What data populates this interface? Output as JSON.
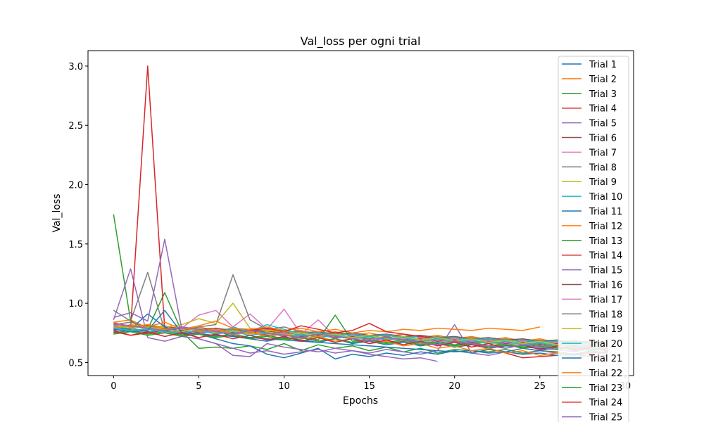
{
  "chart_data": {
    "type": "line",
    "title": "Val_loss per ogni trial",
    "xlabel": "Epochs",
    "ylabel": "Val_loss",
    "xlim": [
      -1.5,
      30.5
    ],
    "ylim": [
      0.39,
      3.13
    ],
    "xticks": [
      0,
      5,
      10,
      15,
      20,
      25,
      30
    ],
    "xtick_labels": [
      "0",
      "5",
      "10",
      "15",
      "20",
      "25",
      "30"
    ],
    "yticks": [
      0.5,
      1.0,
      1.5,
      2.0,
      2.5,
      3.0
    ],
    "ytick_labels": [
      "0.5",
      "1.0",
      "1.5",
      "2.0",
      "2.5",
      "3.0"
    ],
    "grid": false,
    "legend": "right",
    "series": [
      {
        "name": "Trial 1",
        "color": "#1f77b4",
        "values": [
          0.8,
          0.78,
          0.82,
          0.79,
          0.76,
          0.74,
          0.77,
          0.72,
          0.7,
          0.68,
          0.71,
          0.69,
          0.67,
          0.7,
          0.66,
          0.68,
          0.65,
          0.67,
          0.64,
          0.66,
          0.63,
          0.65,
          0.62,
          0.64,
          0.63,
          0.62,
          0.61,
          0.63,
          0.62,
          0.61
        ]
      },
      {
        "name": "Trial 2",
        "color": "#ff7f0e",
        "values": [
          0.84,
          0.86,
          0.79,
          0.81,
          0.78,
          0.8,
          0.77,
          0.79,
          0.76,
          0.78,
          0.75,
          0.77,
          0.74,
          0.76,
          0.73,
          0.75,
          0.72,
          0.74,
          0.71,
          0.73,
          0.7,
          0.72,
          0.69,
          0.71,
          0.68,
          0.7,
          0.67,
          0.69,
          0.66,
          0.68
        ]
      },
      {
        "name": "Trial 3",
        "color": "#2ca02c",
        "values": [
          1.75,
          0.85,
          0.78,
          1.09,
          0.76,
          0.62,
          0.63,
          0.62,
          0.64,
          0.61,
          0.66,
          0.6,
          0.65,
          0.62,
          0.64,
          0.6,
          0.63,
          0.59,
          0.62,
          0.58,
          0.61,
          0.6,
          0.59,
          0.61,
          0.58,
          0.6,
          0.59,
          0.57,
          0.6,
          0.58
        ]
      },
      {
        "name": "Trial 4",
        "color": "#d62728",
        "values": [
          0.8,
          0.79,
          3.0,
          0.78,
          0.77,
          0.79,
          0.76,
          0.78,
          0.75,
          0.77,
          0.74,
          0.76,
          0.73,
          0.75,
          0.74,
          0.72,
          0.73,
          0.71,
          0.72,
          0.7,
          0.71,
          0.69,
          0.7,
          0.68,
          0.69,
          0.67,
          0.68,
          0.66,
          0.67,
          0.65
        ]
      },
      {
        "name": "Trial 5",
        "color": "#9467bd",
        "values": [
          0.86,
          1.29,
          0.71,
          0.68,
          0.72,
          0.7,
          0.66,
          0.56,
          0.55,
          0.66,
          0.63,
          0.61,
          0.59,
          0.62,
          0.6,
          0.58,
          0.61,
          0.59,
          0.57,
          0.6,
          0.82,
          0.58,
          0.56,
          0.59,
          0.57,
          0.6,
          0.58,
          0.56,
          0.59,
          0.57
        ]
      },
      {
        "name": "Trial 6",
        "color": "#8c564b",
        "values": [
          0.82,
          0.8,
          0.81,
          0.79,
          0.8,
          0.78,
          0.79,
          0.77,
          0.78,
          0.76,
          0.77,
          0.75,
          0.76,
          0.74,
          0.75,
          0.73,
          0.74,
          0.72,
          0.73,
          0.71,
          0.72,
          0.7,
          0.71,
          0.69,
          0.7,
          0.68,
          0.69,
          0.67,
          0.68,
          0.66
        ]
      },
      {
        "name": "Trial 7",
        "color": "#e377c2",
        "values": [
          0.83,
          0.78,
          0.75,
          0.77,
          0.79,
          0.9,
          0.94,
          0.8,
          0.91,
          0.78,
          0.95,
          0.74,
          0.86,
          0.72,
          0.7,
          0.71,
          0.69,
          0.7,
          0.68,
          0.69,
          0.67,
          0.68,
          0.66,
          0.67,
          0.65,
          0.66,
          0.64,
          0.65,
          0.63,
          0.64
        ]
      },
      {
        "name": "Trial 8",
        "color": "#7f7f7f",
        "values": [
          0.94,
          0.85,
          1.26,
          0.77,
          0.76,
          0.8,
          0.82,
          1.24,
          0.86,
          0.78,
          0.8,
          0.76,
          0.74,
          0.75,
          0.73,
          0.72,
          0.74,
          0.71,
          0.7,
          0.72,
          0.69,
          0.71,
          0.68,
          0.7,
          0.67,
          0.69,
          0.66,
          0.68,
          0.65,
          0.67
        ]
      },
      {
        "name": "Trial 9",
        "color": "#bcbd22",
        "values": [
          0.79,
          0.81,
          0.78,
          0.8,
          0.82,
          0.87,
          0.83,
          1.0,
          0.79,
          0.77,
          0.76,
          0.75,
          0.74,
          0.73,
          0.72,
          0.71,
          0.7,
          0.69,
          0.68,
          0.67,
          0.68,
          0.66,
          0.67,
          0.65,
          0.66,
          0.64,
          0.65,
          0.63,
          0.64,
          0.62
        ]
      },
      {
        "name": "Trial 10",
        "color": "#17becf",
        "values": [
          0.77,
          0.79,
          0.76,
          0.78,
          0.75,
          0.77,
          0.74,
          0.8,
          0.76,
          0.82,
          0.78,
          0.74,
          0.75,
          0.73,
          0.74,
          0.72,
          0.73,
          0.71,
          0.72,
          0.7,
          0.71,
          0.69,
          0.7,
          0.68,
          0.69,
          0.67,
          0.68,
          0.66,
          0.67,
          0.65
        ]
      },
      {
        "name": "Trial 11",
        "color": "#1f77b4",
        "values": [
          0.81,
          0.78,
          0.91,
          0.8,
          0.76,
          0.74,
          0.7,
          0.66,
          0.64,
          0.57,
          0.54,
          0.58,
          0.62,
          0.53,
          0.57,
          0.55,
          0.58,
          0.56,
          0.59,
          0.57,
          0.6,
          0.58,
          0.61,
          0.59,
          0.62,
          0.6,
          0.63,
          0.61,
          0.64,
          0.62
        ]
      },
      {
        "name": "Trial 12",
        "color": "#ff7f0e",
        "values": [
          0.78,
          0.82,
          0.8,
          0.84,
          0.78,
          0.81,
          0.85,
          0.79,
          0.78,
          0.8,
          0.77,
          0.79,
          0.76,
          0.78,
          0.75,
          0.77,
          0.76,
          0.78,
          0.77,
          0.79,
          0.78,
          0.77,
          0.79,
          0.78,
          0.77,
          0.8,
          null,
          null,
          null,
          null
        ]
      },
      {
        "name": "Trial 13",
        "color": "#2ca02c",
        "values": [
          0.75,
          0.77,
          0.74,
          0.76,
          0.73,
          0.75,
          0.72,
          0.74,
          0.71,
          0.73,
          0.7,
          0.72,
          0.69,
          0.9,
          0.68,
          0.7,
          0.67,
          0.69,
          0.66,
          0.68,
          0.65,
          0.67,
          0.64,
          0.66,
          0.63,
          0.65,
          0.62,
          0.64,
          0.61,
          0.63
        ]
      },
      {
        "name": "Trial 14",
        "color": "#d62728",
        "values": [
          0.76,
          0.73,
          0.75,
          0.77,
          0.74,
          0.76,
          0.78,
          0.75,
          0.77,
          0.79,
          0.76,
          0.81,
          0.78,
          0.75,
          0.77,
          0.83,
          0.76,
          0.74,
          0.72,
          0.7,
          0.68,
          0.65,
          0.62,
          0.58,
          0.54,
          0.55,
          0.56,
          0.57,
          0.58,
          0.59
        ]
      },
      {
        "name": "Trial 15",
        "color": "#9467bd",
        "values": [
          0.88,
          0.92,
          0.85,
          1.54,
          0.78,
          0.7,
          0.66,
          0.62,
          0.58,
          0.6,
          0.57,
          0.59,
          0.61,
          0.58,
          0.6,
          0.57,
          0.55,
          0.53,
          0.54,
          0.51,
          null,
          null,
          null,
          null,
          null,
          null,
          null,
          null,
          null,
          null
        ]
      },
      {
        "name": "Trial 16",
        "color": "#8c564b",
        "values": [
          0.79,
          0.77,
          0.78,
          0.76,
          0.77,
          0.75,
          0.76,
          0.74,
          0.75,
          0.73,
          0.74,
          0.72,
          0.73,
          0.71,
          0.72,
          0.7,
          0.71,
          0.69,
          0.7,
          0.68,
          0.69,
          0.67,
          0.68,
          0.66,
          0.67,
          0.65,
          0.66,
          0.64,
          0.65,
          0.63
        ]
      },
      {
        "name": "Trial 17",
        "color": "#e377c2",
        "values": [
          0.8,
          0.76,
          0.79,
          0.75,
          0.78,
          0.74,
          0.77,
          0.73,
          0.76,
          0.72,
          0.75,
          0.71,
          0.74,
          0.7,
          0.73,
          0.69,
          0.72,
          0.68,
          0.71,
          0.67,
          0.7,
          0.66,
          0.69,
          0.65,
          0.68,
          0.64,
          0.67,
          0.63,
          0.66,
          0.62
        ]
      },
      {
        "name": "Trial 18",
        "color": "#7f7f7f",
        "values": [
          0.82,
          0.84,
          0.8,
          0.78,
          0.79,
          0.77,
          0.76,
          0.78,
          0.75,
          0.74,
          0.76,
          0.73,
          0.72,
          0.74,
          0.71,
          0.7,
          0.72,
          0.69,
          0.68,
          0.7,
          0.67,
          0.66,
          0.68,
          0.65,
          0.64,
          0.66,
          0.63,
          0.62,
          0.64,
          0.61
        ]
      },
      {
        "name": "Trial 19",
        "color": "#bcbd22",
        "values": [
          0.81,
          0.79,
          0.8,
          0.78,
          0.76,
          0.79,
          0.75,
          0.77,
          0.74,
          0.76,
          0.73,
          0.75,
          0.72,
          0.74,
          0.71,
          0.73,
          0.7,
          0.72,
          0.69,
          0.71,
          0.68,
          0.7,
          0.67,
          0.69,
          0.66,
          0.68,
          0.65,
          0.67,
          0.64,
          0.66
        ]
      },
      {
        "name": "Trial 20",
        "color": "#17becf",
        "values": [
          0.79,
          0.77,
          0.78,
          0.76,
          0.75,
          0.77,
          0.74,
          0.76,
          0.73,
          0.75,
          0.72,
          0.74,
          0.71,
          0.73,
          0.7,
          0.72,
          0.69,
          0.71,
          0.68,
          0.7,
          0.67,
          0.69,
          0.66,
          0.68,
          0.65,
          0.67,
          0.64,
          0.66,
          0.63,
          0.65
        ]
      },
      {
        "name": "Trial 21",
        "color": "#1f77b4",
        "values": [
          0.78,
          0.76,
          0.77,
          0.94,
          0.75,
          0.74,
          0.73,
          0.72,
          0.71,
          0.7,
          0.69,
          0.68,
          0.67,
          0.66,
          0.65,
          0.64,
          0.63,
          0.62,
          0.61,
          0.6,
          0.59,
          0.6,
          0.58,
          0.59,
          0.57,
          0.58,
          0.56,
          0.57,
          0.55,
          0.56
        ]
      },
      {
        "name": "Trial 22",
        "color": "#ff7f0e",
        "values": [
          0.84,
          0.8,
          0.82,
          0.78,
          0.8,
          0.76,
          0.78,
          0.74,
          0.76,
          0.72,
          0.74,
          0.7,
          0.72,
          0.68,
          0.7,
          0.66,
          0.68,
          0.64,
          0.66,
          0.62,
          0.64,
          0.6,
          0.62,
          0.58,
          0.6,
          0.56,
          0.58,
          0.54,
          0.56,
          0.52
        ]
      },
      {
        "name": "Trial 23",
        "color": "#2ca02c",
        "values": [
          0.74,
          0.76,
          0.73,
          0.75,
          0.72,
          0.74,
          0.71,
          0.73,
          0.7,
          0.72,
          0.69,
          0.71,
          0.68,
          0.7,
          0.67,
          0.69,
          0.66,
          0.68,
          0.65,
          0.67,
          0.64,
          0.66,
          0.63,
          0.65,
          0.62,
          0.64,
          0.61,
          0.63,
          0.6,
          0.62
        ]
      },
      {
        "name": "Trial 24",
        "color": "#d62728",
        "values": [
          0.77,
          0.73,
          0.76,
          0.72,
          0.75,
          0.71,
          0.74,
          0.7,
          0.73,
          0.69,
          0.72,
          0.68,
          0.71,
          0.67,
          0.7,
          0.66,
          0.69,
          0.65,
          0.68,
          0.64,
          0.67,
          0.63,
          0.66,
          0.62,
          0.65,
          0.61,
          0.64,
          0.6,
          0.63,
          0.59
        ]
      },
      {
        "name": "Trial 25",
        "color": "#9467bd",
        "values": [
          0.83,
          0.81,
          0.79,
          0.77,
          0.8,
          0.78,
          0.76,
          0.74,
          0.77,
          0.75,
          0.73,
          0.71,
          0.74,
          0.72,
          0.7,
          0.68,
          0.71,
          0.69,
          0.67,
          0.65,
          0.68,
          0.66,
          0.64,
          0.62,
          0.65,
          0.63,
          0.61,
          0.59,
          0.62,
          0.6
        ]
      }
    ]
  }
}
